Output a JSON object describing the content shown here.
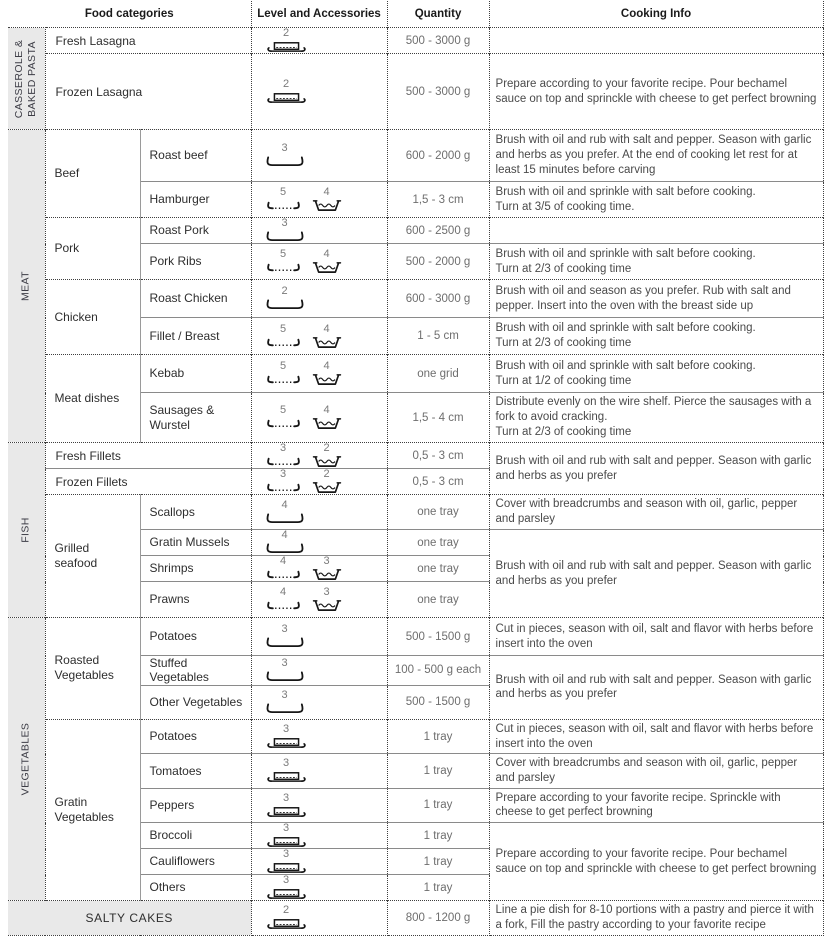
{
  "header": {
    "food_categories": "Food categories",
    "level_accessories": "Level and Accessories",
    "quantity": "Quantity",
    "cooking_info": "Cooking Info"
  },
  "colors": {
    "strip_background": "#e9e9e9",
    "dotted_border": "#3f3f3f",
    "solid_border": "#8a8a8a",
    "body_text": "#4a4a4a"
  },
  "groups": {
    "casserole": "CASSEROLE &\nBAKED PASTA",
    "meat": "MEAT",
    "fish": "FISH",
    "vegetables": "VEGETABLES",
    "salty_cakes": "SALTY CAKES"
  },
  "categories": {
    "beef": "Beef",
    "pork": "Pork",
    "chicken": "Chicken",
    "meat_dishes": "Meat dishes",
    "grilled_seafood": "Grilled seafood",
    "roasted_vegetables": "Roasted Vegetables",
    "gratin_vegetables": "Gratin Vegetables"
  },
  "rows": [
    {
      "food": "Fresh Lasagna",
      "accessories": [
        {
          "level": "2",
          "icon": "dish-on-shelf"
        }
      ],
      "quantity": "500 - 3000 g",
      "cooking": ""
    },
    {
      "food": "Frozen Lasagna",
      "accessories": [
        {
          "level": "2",
          "icon": "dish-on-shelf"
        }
      ],
      "quantity": "500 - 3000 g",
      "cooking": "Prepare according to your favorite recipe. Pour bechamel sauce on top and sprinckle with cheese to get perfect browning"
    },
    {
      "food": "Roast beef",
      "accessories": [
        {
          "level": "3",
          "icon": "tray"
        }
      ],
      "quantity": "600 - 2000 g",
      "cooking": "Brush with oil and rub with salt and pepper. Season with garlic and herbs as you prefer. At the end of cooking let rest for at least 15 minutes before carving"
    },
    {
      "food": "Hamburger",
      "accessories": [
        {
          "level": "5",
          "icon": "wire-shelf"
        },
        {
          "level": "4",
          "icon": "drip-pan"
        }
      ],
      "quantity": "1,5 - 3 cm",
      "cooking": "Brush with oil and sprinkle with salt before cooking.\nTurn at 3/5 of cooking time."
    },
    {
      "food": "Roast Pork",
      "accessories": [
        {
          "level": "3",
          "icon": "tray"
        }
      ],
      "quantity": "600 - 2500 g",
      "cooking": ""
    },
    {
      "food": "Pork Ribs",
      "accessories": [
        {
          "level": "5",
          "icon": "wire-shelf"
        },
        {
          "level": "4",
          "icon": "drip-pan"
        }
      ],
      "quantity": "500 - 2000 g",
      "cooking": "Brush with oil and sprinkle with salt before cooking.\nTurn at 2/3 of cooking time"
    },
    {
      "food": "Roast Chicken",
      "accessories": [
        {
          "level": "2",
          "icon": "tray"
        }
      ],
      "quantity": "600 - 3000 g",
      "cooking": "Brush with oil and season as you prefer. Rub with salt and pepper. Insert into the oven with the breast side up"
    },
    {
      "food": "Fillet / Breast",
      "accessories": [
        {
          "level": "5",
          "icon": "wire-shelf"
        },
        {
          "level": "4",
          "icon": "drip-pan"
        }
      ],
      "quantity": "1 - 5 cm",
      "cooking": "Brush with oil and sprinkle with salt before cooking.\nTurn at 2/3 of cooking time"
    },
    {
      "food": "Kebab",
      "accessories": [
        {
          "level": "5",
          "icon": "wire-shelf"
        },
        {
          "level": "4",
          "icon": "drip-pan"
        }
      ],
      "quantity": "one grid",
      "cooking": "Brush with oil and sprinkle with salt before cooking.\nTurn at 1/2 of cooking time"
    },
    {
      "food": "Sausages & Wurstel",
      "accessories": [
        {
          "level": "5",
          "icon": "wire-shelf"
        },
        {
          "level": "4",
          "icon": "drip-pan"
        }
      ],
      "quantity": "1,5 - 4 cm",
      "cooking": "Distribute evenly on the wire shelf. Pierce the sausages with a fork to avoid cracking.\nTurn at 2/3 of cooking time"
    },
    {
      "food": "Fresh Fillets",
      "accessories": [
        {
          "level": "3",
          "icon": "wire-shelf"
        },
        {
          "level": "2",
          "icon": "drip-pan"
        }
      ],
      "quantity": "0,5 - 3 cm",
      "cooking": "Brush with oil and rub with salt and pepper. Season with garlic and herbs as you prefer"
    },
    {
      "food": "Frozen Fillets",
      "accessories": [
        {
          "level": "3",
          "icon": "wire-shelf"
        },
        {
          "level": "2",
          "icon": "drip-pan"
        }
      ],
      "quantity": "0,5 - 3 cm"
    },
    {
      "food": "Scallops",
      "accessories": [
        {
          "level": "4",
          "icon": "tray"
        }
      ],
      "quantity": "one tray",
      "cooking": "Cover with breadcrumbs and season with oil, garlic, pepper and parsley"
    },
    {
      "food": "Gratin Mussels",
      "accessories": [
        {
          "level": "4",
          "icon": "tray"
        }
      ],
      "quantity": "one tray",
      "cooking": "Brush with oil and rub with salt and pepper. Season with garlic and herbs as you prefer"
    },
    {
      "food": "Shrimps",
      "accessories": [
        {
          "level": "4",
          "icon": "wire-shelf"
        },
        {
          "level": "3",
          "icon": "drip-pan"
        }
      ],
      "quantity": "one tray"
    },
    {
      "food": "Prawns",
      "accessories": [
        {
          "level": "4",
          "icon": "wire-shelf"
        },
        {
          "level": "3",
          "icon": "drip-pan"
        }
      ],
      "quantity": "one tray"
    },
    {
      "food": "Potatoes",
      "accessories": [
        {
          "level": "3",
          "icon": "tray"
        }
      ],
      "quantity": "500 - 1500 g",
      "cooking": "Cut in pieces, season with oil, salt and flavor with herbs before insert into the oven"
    },
    {
      "food": "Stuffed Vegetables",
      "accessories": [
        {
          "level": "3",
          "icon": "tray"
        }
      ],
      "quantity": "100 - 500 g each",
      "cooking": "Brush with oil and rub with salt and pepper. Season with garlic and herbs as you prefer"
    },
    {
      "food": "Other Vegetables",
      "accessories": [
        {
          "level": "3",
          "icon": "tray"
        }
      ],
      "quantity": "500 - 1500 g"
    },
    {
      "food": "Potatoes",
      "accessories": [
        {
          "level": "3",
          "icon": "dish-on-shelf"
        }
      ],
      "quantity": "1 tray",
      "cooking": "Cut in pieces, season with oil, salt and flavor with herbs before insert into the oven"
    },
    {
      "food": "Tomatoes",
      "accessories": [
        {
          "level": "3",
          "icon": "dish-on-shelf"
        }
      ],
      "quantity": "1 tray",
      "cooking": "Cover with breadcrumbs and season with oil, garlic, pepper and parsley"
    },
    {
      "food": "Peppers",
      "accessories": [
        {
          "level": "3",
          "icon": "dish-on-shelf"
        }
      ],
      "quantity": "1 tray",
      "cooking": "Prepare according to your favorite recipe. Sprinckle with cheese to get perfect browning"
    },
    {
      "food": "Broccoli",
      "accessories": [
        {
          "level": "3",
          "icon": "dish-on-shelf"
        }
      ],
      "quantity": "1 tray",
      "cooking": "Prepare according to your favorite recipe. Pour bechamel sauce on top and sprinckle with cheese to get perfect browning"
    },
    {
      "food": "Cauliflowers",
      "accessories": [
        {
          "level": "3",
          "icon": "dish-on-shelf"
        }
      ],
      "quantity": "1 tray"
    },
    {
      "food": "Others",
      "accessories": [
        {
          "level": "3",
          "icon": "dish-on-shelf"
        }
      ],
      "quantity": "1 tray"
    },
    {
      "food": "SALTY CAKES",
      "accessories": [
        {
          "level": "2",
          "icon": "dish-on-shelf"
        }
      ],
      "quantity": "800 - 1200 g",
      "cooking": "Line a pie dish for 8-10 portions with a pastry and pierce it with a fork, Fill the pastry according to your favorite recipe"
    }
  ]
}
